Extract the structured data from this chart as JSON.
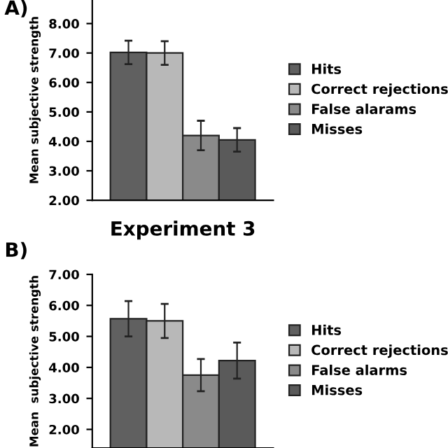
{
  "chart_data": [
    {
      "type": "bar",
      "ylabel": "Mean subjective strength",
      "annotations": [
        "A)"
      ],
      "categories": [
        null
      ],
      "ylim": [
        2,
        8.8
      ],
      "yticks": [
        {
          "value": 2,
          "label": "2.00"
        },
        {
          "value": 3,
          "label": "3.00"
        },
        {
          "value": 4,
          "label": "4.00"
        },
        {
          "value": 5,
          "label": "5.00"
        },
        {
          "value": 6,
          "label": "6.00"
        },
        {
          "value": 7,
          "label": "7.00"
        },
        {
          "value": 8,
          "label": "8.00"
        }
      ],
      "legend": "right",
      "grid": false,
      "series": [
        {
          "name": "Hits",
          "color": "#606060",
          "values": [
            7.02
          ],
          "errors": [
            0.4
          ]
        },
        {
          "name": "Correct rejections",
          "color": "#b8b8b8",
          "values": [
            7.0
          ],
          "errors": [
            0.4
          ]
        },
        {
          "name": "False alarams",
          "color": "#8a8a8a",
          "values": [
            4.2
          ],
          "errors": [
            0.5
          ]
        },
        {
          "name": "Misses",
          "color": "#5a5a5a",
          "values": [
            4.05
          ],
          "errors": [
            0.4
          ]
        }
      ]
    },
    {
      "type": "bar",
      "title": "Experiment 3",
      "ylabel": "Mean  subjective strength",
      "annotations": [
        "B)"
      ],
      "categories": [
        null
      ],
      "ylim": [
        1.4,
        7.0
      ],
      "yticks": [
        {
          "value": 2,
          "label": "2.00"
        },
        {
          "value": 3,
          "label": "3.00"
        },
        {
          "value": 4,
          "label": "4.00"
        },
        {
          "value": 5,
          "label": "5.00"
        },
        {
          "value": 6,
          "label": "6.00"
        },
        {
          "value": 7,
          "label": "7.00"
        }
      ],
      "legend": "right",
      "grid": false,
      "series": [
        {
          "name": "Hits",
          "color": "#606060",
          "values": [
            5.57
          ],
          "errors": [
            0.57
          ]
        },
        {
          "name": "Correct rejections",
          "color": "#b8b8b8",
          "values": [
            5.5
          ],
          "errors": [
            0.55
          ]
        },
        {
          "name": "False alarms",
          "color": "#8a8a8a",
          "values": [
            3.75
          ],
          "errors": [
            0.52
          ]
        },
        {
          "name": "Misses",
          "color": "#5a5a5a",
          "values": [
            4.22
          ],
          "errors": [
            0.58
          ]
        }
      ]
    }
  ]
}
